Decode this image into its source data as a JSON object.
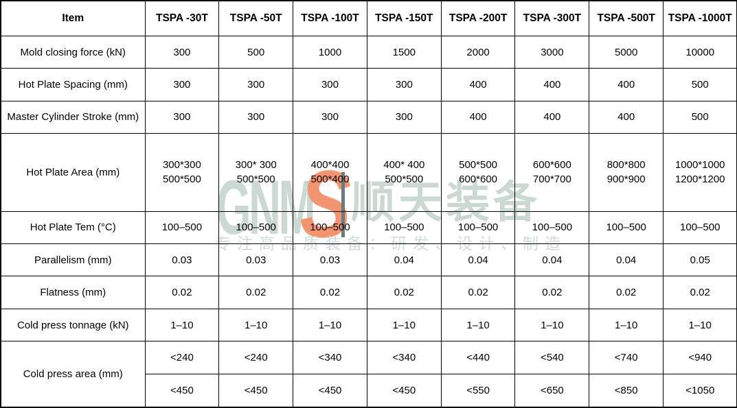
{
  "table": {
    "columns": [
      "Item",
      "TSPA -30T",
      "TSPA -50T",
      "TSPA -100T",
      "TSPA -150T",
      "TSPA -200T",
      "TSPA -300T",
      "TSPA -500T",
      "TSPA -1000T"
    ],
    "rows": [
      {
        "label": "Mold closing force (kN)",
        "values": [
          "300",
          "500",
          "1000",
          "1500",
          "2000",
          "3000",
          "5000",
          "10000"
        ]
      },
      {
        "label": "Hot Plate Spacing (mm)",
        "values": [
          "300",
          "300",
          "300",
          "300",
          "400",
          "400",
          "400",
          "500"
        ]
      },
      {
        "label": "Master Cylinder Stroke (mm)",
        "values": [
          "300",
          "300",
          "300",
          "300",
          "400",
          "400",
          "400",
          "500"
        ]
      },
      {
        "label": "Hot Plate Area (mm)",
        "values": [
          [
            "300*300",
            "500*500"
          ],
          [
            "300* 300",
            "500*500"
          ],
          [
            "400*400",
            "500*400"
          ],
          [
            "400* 400",
            "500*500"
          ],
          [
            "500*500",
            "600*600"
          ],
          [
            "600*600",
            "700*700"
          ],
          [
            "800*800",
            "900*900"
          ],
          [
            "1000*1000",
            "1200*1200"
          ]
        ]
      },
      {
        "label": "Hot Plate Tem (°C)",
        "values": [
          "100–500",
          "100–500",
          "100–500",
          "100–500",
          "100–500",
          "100–500",
          "100–500",
          "100–500"
        ]
      },
      {
        "label": "Parallelism (mm)",
        "values": [
          "0.03",
          "0.03",
          "0.03",
          "0.04",
          "0.04",
          "0.04",
          "0.04",
          "0.05"
        ]
      },
      {
        "label": "Flatness (mm)",
        "values": [
          "0.02",
          "0.02",
          "0.02",
          "0.02",
          "0.02",
          "0.02",
          "0.02",
          "0.02"
        ]
      },
      {
        "label": "Cold press tonnage (kN)",
        "values": [
          "1–10",
          "1–10",
          "1–10",
          "1–10",
          "1–10",
          "1–10",
          "1–10",
          "1–10"
        ]
      },
      {
        "label": "Cold press area (mm)",
        "sub": [
          [
            "<240",
            "<240",
            "<340",
            "<340",
            "<440",
            "<540",
            "<740",
            "<940"
          ],
          [
            "<450",
            "<450",
            "<450",
            "<450",
            "<550",
            "<650",
            "<850",
            "<1050"
          ]
        ]
      }
    ]
  },
  "watermark": {
    "logo_text": "GNM",
    "logo_s": "S",
    "logo_cn": "顺天装备",
    "tagline": "专注高品质装备：研发、设计、制造",
    "colors": {
      "pale_green": "#ccd9d3",
      "orange": "#f07c50",
      "divider_gray": "#6e7b7e"
    }
  }
}
